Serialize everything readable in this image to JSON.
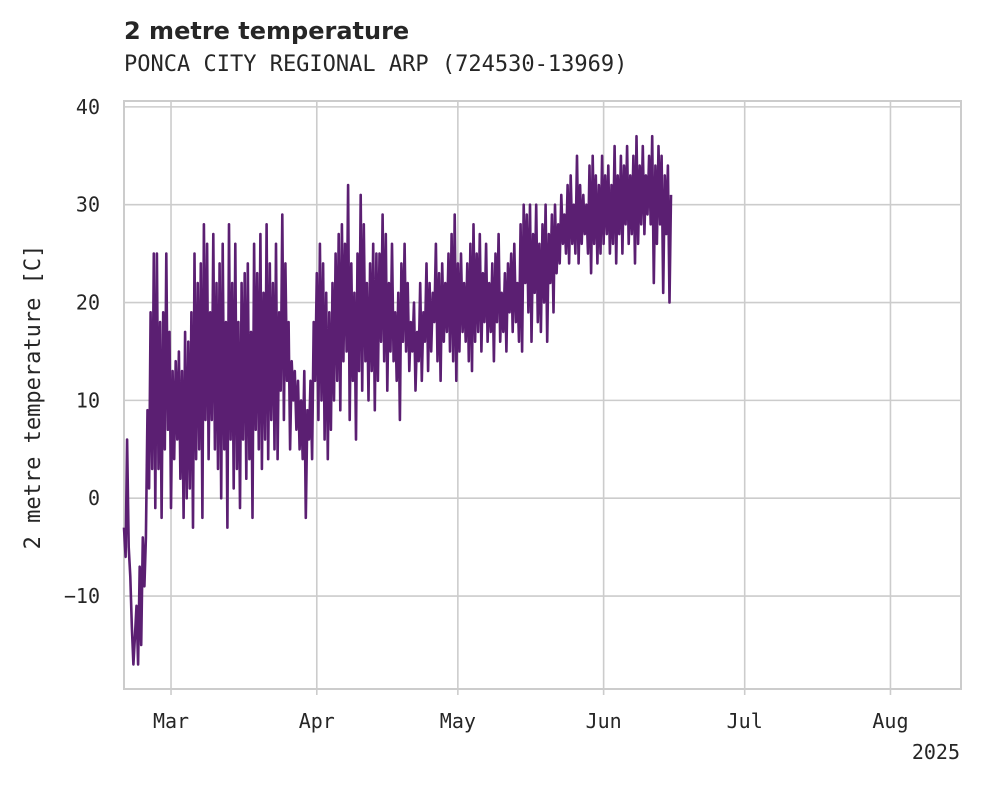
{
  "chart_data": {
    "type": "line",
    "title": "2 metre temperature",
    "subtitle": "PONCA CITY REGIONAL ARP (724530-13969)",
    "ylabel": "2 metre temperature [C]",
    "xlabel": "",
    "year_label": "2025",
    "ylim": [
      -19.5,
      40.6
    ],
    "xlim": [
      "2025-02-19",
      "2025-08-16"
    ],
    "y_ticks": [
      {
        "value": -10,
        "label": "−10"
      },
      {
        "value": 0,
        "label": "0"
      },
      {
        "value": 10,
        "label": "10"
      },
      {
        "value": 20,
        "label": "20"
      },
      {
        "value": 30,
        "label": "30"
      },
      {
        "value": 40,
        "label": "40"
      }
    ],
    "x_ticks": [
      {
        "date": "2025-03-01",
        "label": "Mar"
      },
      {
        "date": "2025-04-01",
        "label": "Apr"
      },
      {
        "date": "2025-05-01",
        "label": "May"
      },
      {
        "date": "2025-06-01",
        "label": "Jun"
      },
      {
        "date": "2025-07-01",
        "label": "Jul"
      },
      {
        "date": "2025-08-01",
        "label": "Aug"
      }
    ],
    "grid": true,
    "line_color": "#5b1f72",
    "series": [
      {
        "name": "",
        "interval_hours": 8,
        "start": "2025-02-19T00:00",
        "values": [
          -3,
          -6,
          6,
          -5,
          -8,
          -13,
          -17,
          -14,
          -11,
          -17,
          -7,
          -15,
          -4,
          -9,
          -4,
          9,
          1,
          19,
          3,
          25,
          -1,
          25,
          3,
          18,
          -2,
          19,
          5,
          25,
          7,
          17,
          -1,
          13,
          4,
          14,
          6,
          15,
          2,
          13,
          -2,
          17,
          0,
          16,
          1,
          19,
          -3,
          25,
          4,
          22,
          5,
          24,
          -2,
          28,
          8,
          26,
          4,
          19,
          8,
          27,
          5,
          22,
          3,
          24,
          0,
          26,
          5,
          18,
          -3,
          28,
          6,
          22,
          1,
          26,
          3,
          18,
          -1,
          22,
          6,
          23,
          2,
          24,
          4,
          17,
          -2,
          26,
          7,
          23,
          5,
          27,
          3,
          21,
          6,
          28,
          4,
          24,
          8,
          22,
          5,
          26,
          4,
          19,
          11,
          29,
          8,
          24,
          12,
          18,
          5,
          14,
          10,
          13,
          7,
          12,
          5,
          10,
          4,
          13,
          -2,
          9,
          6,
          12,
          4,
          18,
          12,
          23,
          8,
          26,
          10,
          24,
          6,
          21,
          4,
          19,
          7,
          22,
          10,
          25,
          12,
          27,
          9,
          28,
          14,
          26,
          15,
          32,
          8,
          24,
          12,
          21,
          6,
          25,
          13,
          31,
          11,
          28,
          14,
          22,
          10,
          24,
          13,
          26,
          9,
          25,
          12,
          25,
          16,
          29,
          14,
          27,
          11,
          22,
          15,
          26,
          14,
          19,
          12,
          21,
          8,
          24,
          16,
          26,
          15,
          22,
          13,
          18,
          15,
          20,
          11,
          17,
          14,
          22,
          12,
          19,
          16,
          24,
          13,
          22,
          15,
          21,
          18,
          26,
          14,
          23,
          12,
          24,
          16,
          22,
          17,
          25,
          15,
          27,
          14,
          29,
          12,
          24,
          15,
          25,
          17,
          22,
          16,
          24,
          14,
          26,
          13,
          28,
          16,
          25,
          17,
          27,
          15,
          23,
          18,
          26,
          16,
          22,
          17,
          24,
          14,
          25,
          18,
          27,
          16,
          21,
          17,
          23,
          15,
          24,
          19,
          25,
          17,
          26,
          18,
          22,
          16,
          28,
          15,
          30,
          22,
          29,
          19,
          30,
          16,
          27,
          21,
          30,
          18,
          26,
          17,
          28,
          20,
          30,
          16,
          27,
          22,
          29,
          19,
          30,
          23,
          28,
          24,
          31,
          26,
          29,
          25,
          32,
          24,
          33,
          26,
          30,
          25,
          35,
          24,
          32,
          26,
          31,
          27,
          30,
          25,
          34,
          23,
          35,
          26,
          33,
          24,
          32,
          25,
          35,
          26,
          33,
          27,
          34,
          25,
          32,
          26,
          36,
          24,
          33,
          27,
          35,
          25,
          34,
          28,
          36,
          26,
          33,
          27,
          35,
          24,
          37,
          26,
          34,
          28,
          36,
          27,
          33,
          29,
          35,
          28,
          37,
          22,
          34,
          26,
          36,
          28,
          35,
          21,
          33,
          27,
          34,
          20,
          31
        ]
      }
    ]
  }
}
